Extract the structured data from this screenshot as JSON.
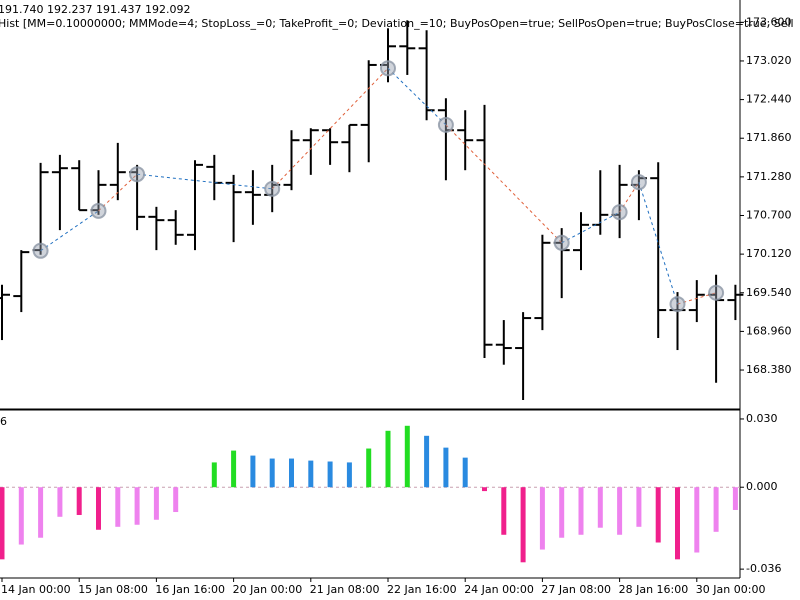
{
  "chart_data": [
    {
      "type": "ohlc",
      "title": "191.740 192.237 191.437 192.092",
      "subtitle": "Hist [MM=0.10000000; MMMode=4; StopLoss_=0; TakeProfit_=0; Deviation_=10; BuyPosOpen=true; SellPosOpen=true; BuyPosClose=true; Sell",
      "categories": [
        "14 Jan 00:00",
        null,
        null,
        null,
        "15 Jan 08:00",
        null,
        null,
        null,
        "16 Jan 16:00",
        null,
        null,
        null,
        "20 Jan 00:00",
        null,
        null,
        null,
        "21 Jan 08:00",
        null,
        null,
        null,
        "22 Jan 16:00",
        null,
        null,
        null,
        "24 Jan 00:00",
        null,
        null,
        null,
        "27 Jan 08:00",
        null,
        null,
        null,
        "28 Jan 16:00",
        null,
        null,
        null,
        "30 Jan 00:00",
        null,
        null
      ],
      "open": [
        169.46,
        169.49,
        170.18,
        171.35,
        171.41,
        170.78,
        171.16,
        171.35,
        170.68,
        170.63,
        170.41,
        171.43,
        171.19,
        171.05,
        171.01,
        171.16,
        171.83,
        171.98,
        171.8,
        172.06,
        172.96,
        173.24,
        173.21,
        172.28,
        171.98,
        171.83,
        168.76,
        168.71,
        169.16,
        170.29,
        170.18,
        170.56,
        170.71,
        171.16,
        171.26,
        169.28,
        169.28,
        169.51,
        169.43
      ],
      "high": [
        169.66,
        170.18,
        171.49,
        171.61,
        171.53,
        171.38,
        171.79,
        171.46,
        170.83,
        170.78,
        171.53,
        171.61,
        171.31,
        171.38,
        171.46,
        171.98,
        172.01,
        172.01,
        172.06,
        173.03,
        173.51,
        173.63,
        173.48,
        172.46,
        172.28,
        172.36,
        169.13,
        169.25,
        170.41,
        170.51,
        170.75,
        171.38,
        171.46,
        171.38,
        171.5,
        169.55,
        169.73,
        169.81,
        169.66
      ],
      "low": [
        168.83,
        169.25,
        170.11,
        170.48,
        170.78,
        170.71,
        170.93,
        170.48,
        170.18,
        170.26,
        170.18,
        170.93,
        170.3,
        170.56,
        170.75,
        171.08,
        171.31,
        171.46,
        171.35,
        171.5,
        172.7,
        172.81,
        172.13,
        171.23,
        171.38,
        168.56,
        168.46,
        167.93,
        168.98,
        169.46,
        169.88,
        170.41,
        170.36,
        170.63,
        168.86,
        168.68,
        169.1,
        168.19,
        169.13
      ],
      "close": [
        169.51,
        170.15,
        171.35,
        171.41,
        170.78,
        171.16,
        171.35,
        170.68,
        170.63,
        170.41,
        171.46,
        171.19,
        171.05,
        171.01,
        171.16,
        171.83,
        171.98,
        171.8,
        172.06,
        172.96,
        173.24,
        173.21,
        172.28,
        171.98,
        171.83,
        168.76,
        168.71,
        169.16,
        170.29,
        170.18,
        170.56,
        170.71,
        171.16,
        171.26,
        169.28,
        169.28,
        169.51,
        169.43,
        169.51
      ],
      "color": "#000000",
      "zigzag": {
        "x": [
          2,
          5,
          7,
          14,
          20,
          23,
          29,
          32,
          33,
          35,
          37
        ],
        "values": [
          170.17,
          170.77,
          171.32,
          171.1,
          172.91,
          172.06,
          170.29,
          170.75,
          171.2,
          169.37,
          169.54
        ],
        "segment_colors": [
          "#1f6fc0",
          "#e0603a",
          "#1f6fc0",
          "#e0603a",
          "#1f6fc0",
          "#e0603a",
          "#1f6fc0",
          "#e0603a",
          "#1f6fc0",
          "#e0603a"
        ]
      },
      "ylim": [
        167.81,
        173.86
      ],
      "yticks": [
        {
          "value": 168.38,
          "label": "168.380"
        },
        {
          "value": 168.96,
          "label": "168.960"
        },
        {
          "value": 169.54,
          "label": "169.540"
        },
        {
          "value": 170.12,
          "label": "170.120"
        },
        {
          "value": 170.7,
          "label": "170.700"
        },
        {
          "value": 171.28,
          "label": "171.280"
        },
        {
          "value": 171.86,
          "label": "171.860"
        },
        {
          "value": 172.44,
          "label": "172.440"
        },
        {
          "value": 173.02,
          "label": "173.020"
        },
        {
          "value": 173.6,
          "label": "173.600"
        }
      ]
    },
    {
      "type": "bar",
      "title": "6",
      "values": [
        -0.0317,
        -0.0252,
        -0.0222,
        -0.013,
        -0.0122,
        -0.0187,
        -0.0174,
        -0.0165,
        -0.0143,
        -0.0109,
        null,
        0.0109,
        0.0161,
        0.0139,
        0.0126,
        0.0126,
        0.0117,
        0.0113,
        0.0109,
        0.017,
        0.0248,
        0.027,
        0.0226,
        0.0174,
        0.013,
        -0.0017,
        -0.0209,
        -0.033,
        -0.0274,
        -0.0222,
        -0.0209,
        -0.0178,
        -0.0209,
        -0.0174,
        -0.0243,
        -0.0317,
        -0.0287,
        -0.0196,
        -0.01
      ],
      "colors": [
        "#f0208c",
        "#ee82ee",
        "#ee82ee",
        "#ee82ee",
        "#f0208c",
        "#f0208c",
        "#ee82ee",
        "#ee82ee",
        "#ee82ee",
        "#ee82ee",
        null,
        "#22dd22",
        "#22dd22",
        "#2a8ae0",
        "#2a8ae0",
        "#2a8ae0",
        "#2a8ae0",
        "#2a8ae0",
        "#2a8ae0",
        "#22dd22",
        "#22dd22",
        "#22dd22",
        "#2a8ae0",
        "#2a8ae0",
        "#2a8ae0",
        "#f0208c",
        "#f0208c",
        "#f0208c",
        "#ee82ee",
        "#ee82ee",
        "#ee82ee",
        "#ee82ee",
        "#ee82ee",
        "#ee82ee",
        "#f0208c",
        "#f0208c",
        "#ee82ee",
        "#ee82ee",
        "#ee82ee"
      ],
      "ylim": [
        -0.0399,
        0.0335
      ],
      "yticks": [
        {
          "value": -0.036,
          "label": "-0.036"
        },
        {
          "value": 0,
          "label": "0.000"
        },
        {
          "value": 0.03,
          "label": "0.030"
        }
      ]
    }
  ]
}
